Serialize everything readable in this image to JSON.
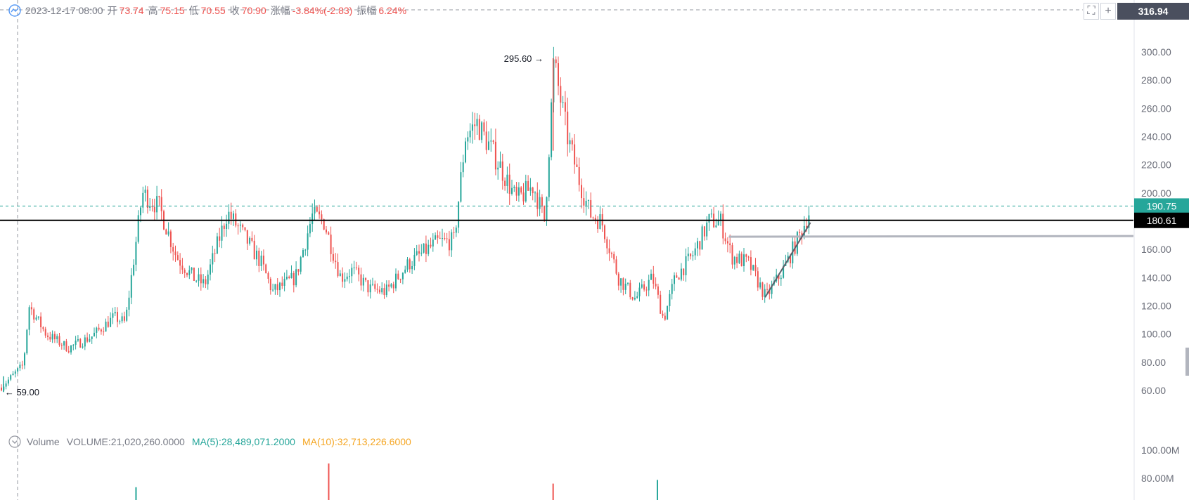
{
  "header": {
    "datetime": "2023-12-17 08:00",
    "open_label": "开",
    "open": "73.74",
    "high_label": "高",
    "high": "75.15",
    "low_label": "低",
    "low": "70.55",
    "close_label": "收",
    "close": "70.90",
    "change_label": "涨幅",
    "change": "-3.84%(-2.83)",
    "amplitude_label": "振幅",
    "amplitude": "6.24%"
  },
  "top_price_box": "316.94",
  "volume_legend": {
    "title": "Volume",
    "volume": "VOLUME:21,020,260.0000",
    "ma5": "MA(5):28,489,071.2000",
    "ma10": "MA(10):32,713,226.6000",
    "ma5_color": "#26a69a",
    "ma10_color": "#f5a623"
  },
  "colors": {
    "up": "#26a69a",
    "down": "#ef5350",
    "axis_text": "#787b86"
  },
  "chart_data": {
    "type": "candlestick",
    "price_axis": {
      "ticks": [
        "300.00",
        "280.00",
        "260.00",
        "240.00",
        "220.00",
        "200.00",
        "160.00",
        "140.00",
        "120.00",
        "100.00",
        "80.00",
        "60.00"
      ],
      "ylim": [
        47,
        312
      ]
    },
    "volume_axis": {
      "ticks": [
        "100.00M",
        "80.00M"
      ]
    },
    "current_price_label": "190.75",
    "horizontal_line_label": "180.61",
    "max_annotation": "295.60",
    "min_annotation": "59.00",
    "horizontal_levels": {
      "current": 190.75,
      "support": 180.61,
      "gray": 169
    },
    "trendline": [
      [
        0.675,
        126
      ],
      [
        0.715,
        179
      ]
    ],
    "max_point": [
      0.488,
      295.6
    ],
    "min_point": [
      0.003,
      59
    ],
    "path_anchors": [
      [
        0.0,
        62
      ],
      [
        0.02,
        78
      ],
      [
        0.025,
        120
      ],
      [
        0.04,
        100
      ],
      [
        0.06,
        90
      ],
      [
        0.08,
        98
      ],
      [
        0.1,
        112
      ],
      [
        0.11,
        108
      ],
      [
        0.125,
        200
      ],
      [
        0.14,
        190
      ],
      [
        0.155,
        155
      ],
      [
        0.17,
        140
      ],
      [
        0.18,
        135
      ],
      [
        0.2,
        186
      ],
      [
        0.21,
        175
      ],
      [
        0.23,
        150
      ],
      [
        0.24,
        130
      ],
      [
        0.26,
        140
      ],
      [
        0.275,
        184
      ],
      [
        0.285,
        180
      ],
      [
        0.3,
        140
      ],
      [
        0.31,
        145
      ],
      [
        0.325,
        132
      ],
      [
        0.34,
        130
      ],
      [
        0.36,
        150
      ],
      [
        0.385,
        165
      ],
      [
        0.4,
        166
      ],
      [
        0.41,
        240
      ],
      [
        0.42,
        250
      ],
      [
        0.44,
        220
      ],
      [
        0.455,
        195
      ],
      [
        0.47,
        205
      ],
      [
        0.48,
        180
      ],
      [
        0.488,
        292
      ],
      [
        0.5,
        240
      ],
      [
        0.51,
        210
      ],
      [
        0.52,
        185
      ],
      [
        0.53,
        180
      ],
      [
        0.545,
        140
      ],
      [
        0.56,
        125
      ],
      [
        0.575,
        140
      ],
      [
        0.585,
        110
      ],
      [
        0.595,
        140
      ],
      [
        0.61,
        155
      ],
      [
        0.625,
        180
      ],
      [
        0.635,
        180
      ],
      [
        0.645,
        155
      ],
      [
        0.66,
        150
      ],
      [
        0.675,
        126
      ],
      [
        0.69,
        145
      ],
      [
        0.705,
        170
      ],
      [
        0.715,
        190
      ]
    ],
    "volume_spikes": [
      [
        0.12,
        0.35
      ],
      [
        0.29,
        1.0
      ],
      [
        0.488,
        0.45
      ],
      [
        0.58,
        0.55
      ]
    ]
  }
}
